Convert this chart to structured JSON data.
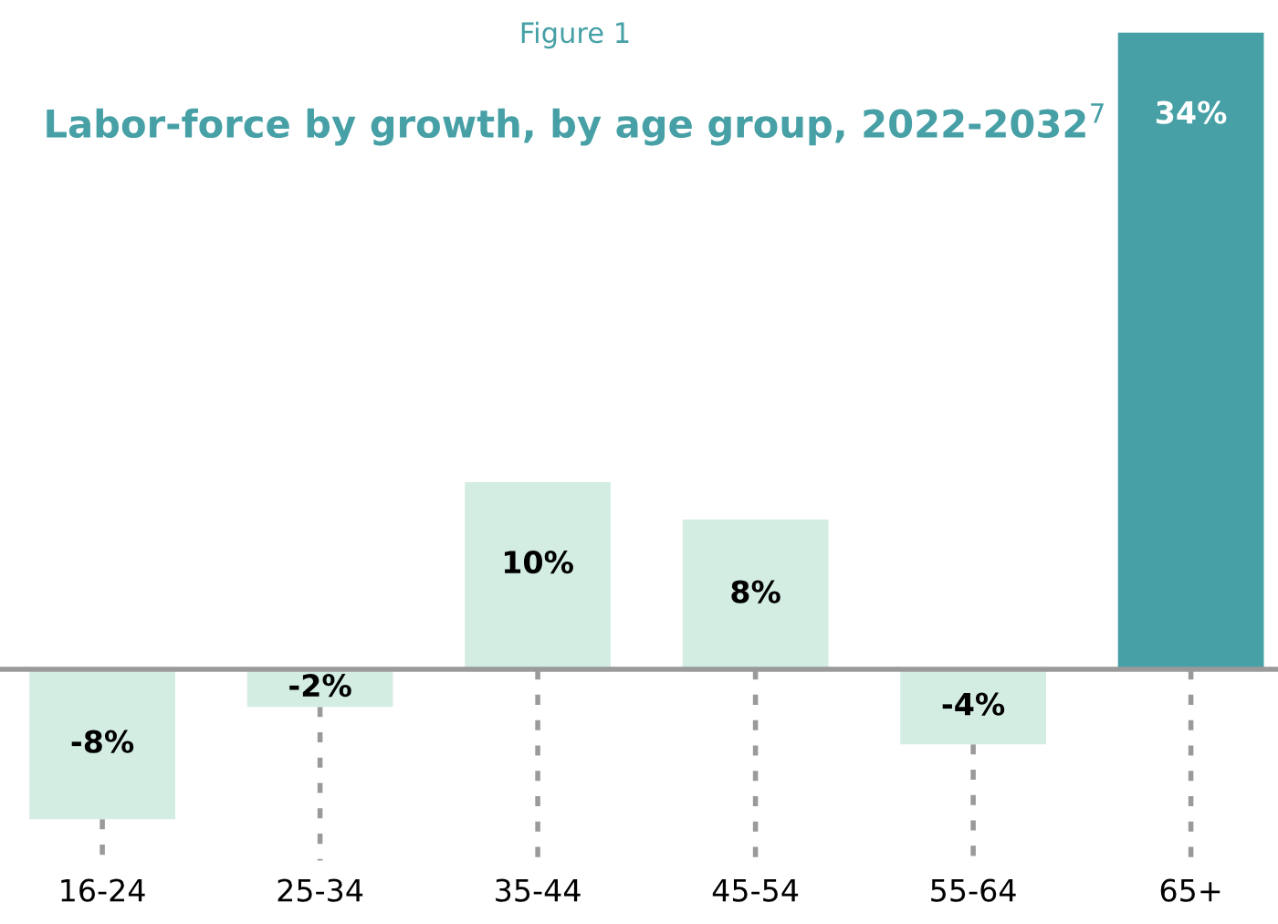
{
  "chart_data": {
    "type": "bar",
    "subtitle": "Figure 1",
    "title": "Labor-force by growth, by age group, 2022-2032$^{7}$",
    "categories": [
      "16-24",
      "25-34",
      "35-44",
      "45-54",
      "55-64",
      "65+"
    ],
    "values": [
      -8,
      -2,
      10,
      8,
      -4,
      34
    ],
    "colors": [
      "#d4ede3",
      "#d4ede3",
      "#d4ede3",
      "#d4ede3",
      "#d4ede3",
      "#46a0a6"
    ],
    "value_labels": [
      "-8%",
      "-2%",
      "10%",
      "8%",
      "-4%",
      "34%"
    ],
    "grid": false,
    "legend": false
  }
}
